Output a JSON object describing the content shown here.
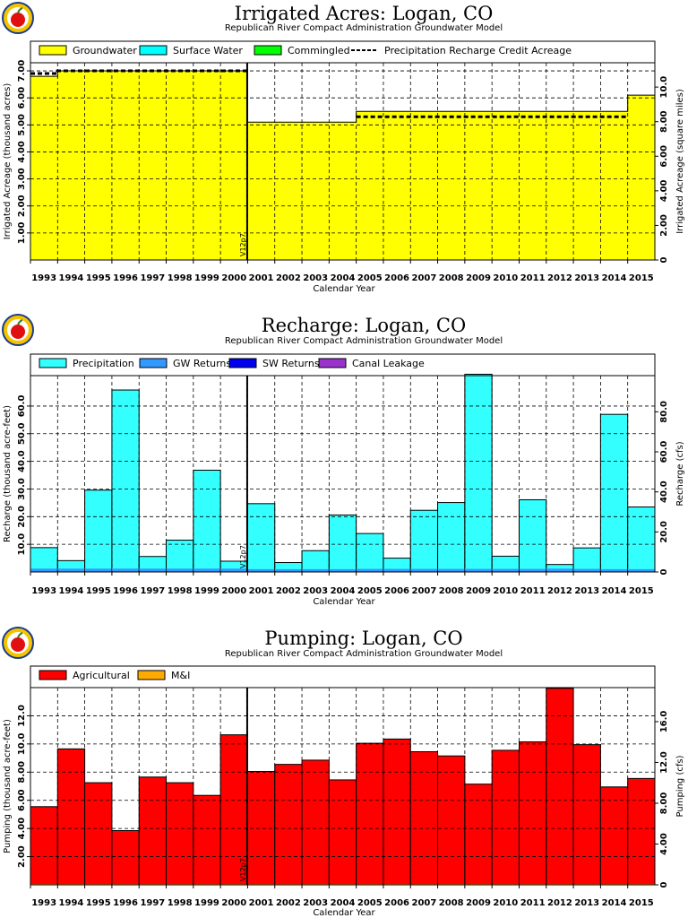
{
  "colors": {
    "groundwater": "#ffff00",
    "surface_water": "#00ffff",
    "commingled": "#00ff00",
    "precipitation": "#33ffff",
    "gw_returns": "#3399ff",
    "sw_returns": "#0000ee",
    "canal_leakage": "#9933cc",
    "agricultural": "#ff0000",
    "mi": "#ffaa00"
  },
  "chart_data": [
    {
      "type": "area",
      "title": "Irrigated Acres: Logan, CO",
      "subtitle": "Republican River Compact Administration Groundwater Model",
      "xlabel": "Calendar Year",
      "ylabel": "Irrigated Acreage (thousand acres)",
      "ylabel_right": "Irrigated Acreage (square miles)",
      "categories": [
        "1993",
        "1994",
        "1995",
        "1996",
        "1997",
        "1998",
        "1999",
        "2000",
        "2001",
        "2002",
        "2003",
        "2004",
        "2005",
        "2006",
        "2007",
        "2008",
        "2009",
        "2010",
        "2011",
        "2012",
        "2013",
        "2014",
        "2015"
      ],
      "ylim": [
        0,
        7.3
      ],
      "yticks": [
        {
          "v": 1,
          "label": "1.00"
        },
        {
          "v": 2,
          "label": "2.00"
        },
        {
          "v": 3,
          "label": "3.00"
        },
        {
          "v": 4,
          "label": "4.00"
        },
        {
          "v": 5,
          "label": "5.00"
        },
        {
          "v": 6,
          "label": "6.00"
        },
        {
          "v": 7,
          "label": "7.00"
        }
      ],
      "yticks_right": [
        {
          "label": "0",
          "sqmi": 0
        },
        {
          "label": "2.00",
          "sqmi": 2
        },
        {
          "label": "4.00",
          "sqmi": 4
        },
        {
          "label": "6.00",
          "sqmi": 6
        },
        {
          "label": "8.00",
          "sqmi": 8
        },
        {
          "label": "10.0",
          "sqmi": 10
        }
      ],
      "series": [
        {
          "name": "Groundwater",
          "values": [
            6.8,
            7.0,
            7.0,
            7.0,
            7.0,
            7.0,
            7.0,
            7.0,
            5.1,
            5.1,
            5.1,
            5.1,
            5.5,
            5.5,
            5.5,
            5.5,
            5.5,
            5.5,
            5.5,
            5.5,
            5.5,
            5.5,
            6.1
          ]
        },
        {
          "name": "Surface Water",
          "values": [
            0,
            0,
            0,
            0,
            0,
            0,
            0,
            0,
            0,
            0,
            0,
            0,
            0,
            0,
            0,
            0,
            0,
            0,
            0,
            0,
            0,
            0,
            0
          ]
        },
        {
          "name": "Commingled",
          "values": [
            0,
            0,
            0,
            0,
            0,
            0,
            0,
            0,
            0,
            0,
            0,
            0,
            0,
            0,
            0,
            0,
            0,
            0,
            0,
            0,
            0,
            0,
            0
          ]
        }
      ],
      "dashed_series": {
        "name": "Precipitation Recharge Credit Acreage",
        "values": [
          6.9,
          7.0,
          7.0,
          7.0,
          7.0,
          7.0,
          7.0,
          7.0,
          null,
          null,
          null,
          null,
          5.3,
          5.3,
          5.3,
          5.3,
          5.3,
          5.3,
          5.3,
          5.3,
          5.3,
          5.3,
          null
        ]
      },
      "marker_label": "V12p7",
      "legend_position": "top",
      "grid": true
    },
    {
      "type": "bar",
      "title": "Recharge: Logan, CO",
      "subtitle": "Republican River Compact Administration Groundwater Model",
      "xlabel": "Calendar Year",
      "ylabel": "Recharge (thousand acre-feet)",
      "ylabel_right": "Recharge (cfs)",
      "categories": [
        "1993",
        "1994",
        "1995",
        "1996",
        "1997",
        "1998",
        "1999",
        "2000",
        "2001",
        "2002",
        "2003",
        "2004",
        "2005",
        "2006",
        "2007",
        "2008",
        "2009",
        "2010",
        "2011",
        "2012",
        "2013",
        "2014",
        "2015"
      ],
      "ylim": [
        0,
        71
      ],
      "yticks": [
        {
          "v": 10,
          "label": "10.0"
        },
        {
          "v": 20,
          "label": "20.0"
        },
        {
          "v": 30,
          "label": "30.0"
        },
        {
          "v": 40,
          "label": "40.0"
        },
        {
          "v": 50,
          "label": "50.0"
        },
        {
          "v": 60,
          "label": "60.0"
        }
      ],
      "yticks_right": [
        {
          "label": "0",
          "cfs": 0
        },
        {
          "label": "20.0",
          "cfs": 20
        },
        {
          "label": "40.0",
          "cfs": 40
        },
        {
          "label": "60.0",
          "cfs": 60
        },
        {
          "label": "80.0",
          "cfs": 80
        }
      ],
      "series": [
        {
          "name": "Precipitation",
          "values": [
            7.6,
            2.9,
            28.4,
            64.6,
            4.4,
            10.3,
            35.6,
            2.7,
            23.7,
            2.4,
            6.7,
            19.6,
            12.8,
            3.9,
            21.2,
            24.0,
            70.4,
            4.6,
            25.0,
            1.5,
            7.6,
            56.0,
            22.5
          ]
        },
        {
          "name": "GW Returns",
          "values": [
            1.2,
            1.2,
            1.2,
            1.2,
            1.2,
            1.2,
            1.2,
            1.2,
            1.0,
            1.0,
            1.0,
            1.0,
            1.1,
            1.1,
            1.1,
            1.1,
            1.1,
            1.1,
            1.1,
            1.2,
            1.1,
            1.0,
            1.0
          ]
        },
        {
          "name": "SW Returns",
          "values": [
            0,
            0,
            0,
            0,
            0,
            0,
            0,
            0,
            0,
            0,
            0,
            0,
            0,
            0,
            0,
            0,
            0,
            0,
            0,
            0,
            0,
            0,
            0
          ]
        },
        {
          "name": "Canal Leakage",
          "values": [
            0,
            0,
            0,
            0,
            0,
            0,
            0,
            0,
            0,
            0,
            0,
            0,
            0,
            0,
            0,
            0,
            0,
            0,
            0,
            0,
            0,
            0,
            0
          ]
        }
      ],
      "marker_label": "V12p7",
      "legend_position": "top",
      "grid": true
    },
    {
      "type": "bar",
      "title": "Pumping: Logan, CO",
      "subtitle": "Republican River Compact Administration Groundwater Model",
      "xlabel": "Calendar Year",
      "ylabel": "Pumping (thousand acre-feet)",
      "ylabel_right": "Pumping (cfs)",
      "categories": [
        "1993",
        "1994",
        "1995",
        "1996",
        "1997",
        "1998",
        "1999",
        "2000",
        "2001",
        "2002",
        "2003",
        "2004",
        "2005",
        "2006",
        "2007",
        "2008",
        "2009",
        "2010",
        "2011",
        "2012",
        "2013",
        "2014",
        "2015"
      ],
      "ylim": [
        0,
        14
      ],
      "yticks": [
        {
          "v": 2,
          "label": "2.00"
        },
        {
          "v": 4,
          "label": "4.00"
        },
        {
          "v": 6,
          "label": "6.00"
        },
        {
          "v": 8,
          "label": "8.00"
        },
        {
          "v": 10,
          "label": "10.0"
        },
        {
          "v": 12,
          "label": "12.0"
        }
      ],
      "yticks_right": [
        {
          "label": "0",
          "cfs": 0
        },
        {
          "label": "4.00",
          "cfs": 4
        },
        {
          "label": "8.00",
          "cfs": 8
        },
        {
          "label": "12.0",
          "cfs": 12
        },
        {
          "label": "16.0",
          "cfs": 16
        }
      ],
      "series": [
        {
          "name": "Agricultural",
          "values": [
            5.5,
            9.6,
            7.2,
            3.8,
            7.6,
            7.2,
            6.3,
            10.6,
            8.0,
            8.5,
            8.8,
            7.4,
            10.0,
            10.3,
            9.4,
            9.1,
            7.1,
            9.5,
            10.1,
            13.9,
            9.9,
            6.9,
            7.5
          ]
        },
        {
          "name": "M&I",
          "values": [
            0.05,
            0.05,
            0.05,
            0.05,
            0.05,
            0.05,
            0.05,
            0.05,
            0.05,
            0.05,
            0.05,
            0.05,
            0.05,
            0.05,
            0.05,
            0.05,
            0.05,
            0.05,
            0.05,
            0.05,
            0.05,
            0.05,
            0.05
          ]
        }
      ],
      "marker_label": "V12p7",
      "legend_position": "top",
      "grid": true
    }
  ]
}
